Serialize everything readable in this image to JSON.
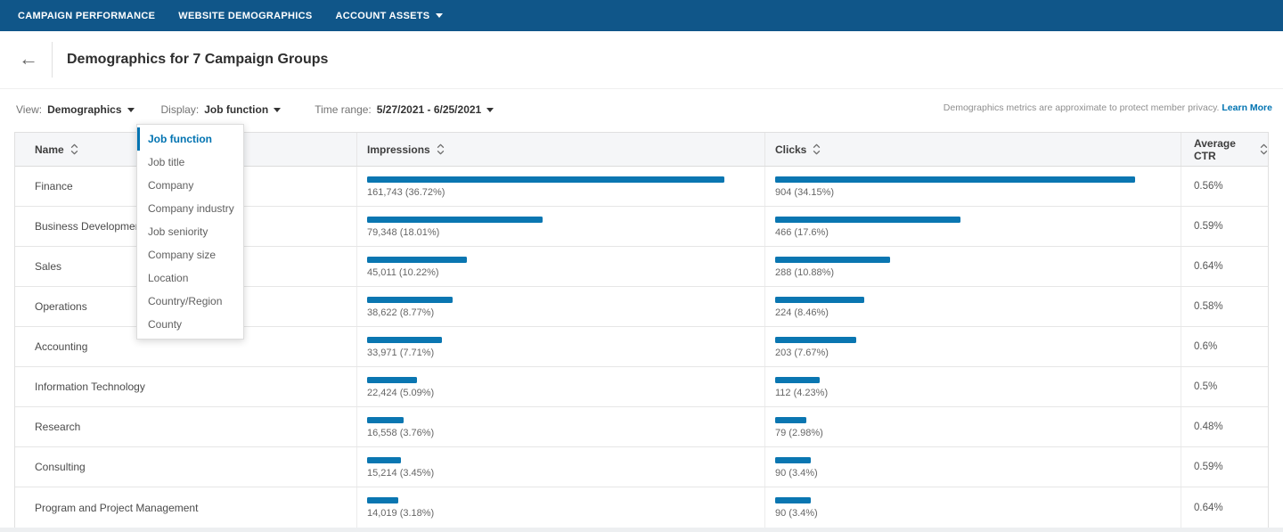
{
  "nav": {
    "items": [
      {
        "id": "campaign-performance",
        "label": "CAMPAIGN PERFORMANCE",
        "has_caret": false
      },
      {
        "id": "website-demographics",
        "label": "WEBSITE DEMOGRAPHICS",
        "has_caret": false
      },
      {
        "id": "account-assets",
        "label": "ACCOUNT ASSETS",
        "has_caret": true
      }
    ]
  },
  "header": {
    "title": "Demographics for 7 Campaign Groups"
  },
  "filters": {
    "view_label": "View:",
    "view_value": "Demographics",
    "display_label": "Display:",
    "display_value": "Job function",
    "time_range_label": "Time range:",
    "time_range_value": "5/27/2021 - 6/25/2021",
    "privacy_note": "Demographics metrics are approximate to protect member privacy.",
    "learn_more": "Learn More"
  },
  "display_dropdown": {
    "selected": "Job function",
    "items": [
      "Job function",
      "Job title",
      "Company",
      "Company industry",
      "Job seniority",
      "Company size",
      "Location",
      "Country/Region",
      "County"
    ]
  },
  "table": {
    "columns": [
      "Name",
      "Impressions",
      "Clicks",
      "Average CTR"
    ],
    "rows": [
      {
        "name": "Finance",
        "impressions_label": "161,743 (36.72%)",
        "impressions": 161743,
        "clicks_label": "904 (34.15%)",
        "clicks": 904,
        "avg_ctr": "0.56%"
      },
      {
        "name": "Business Development",
        "impressions_label": "79,348 (18.01%)",
        "impressions": 79348,
        "clicks_label": "466 (17.6%)",
        "clicks": 466,
        "avg_ctr": "0.59%"
      },
      {
        "name": "Sales",
        "impressions_label": "45,011 (10.22%)",
        "impressions": 45011,
        "clicks_label": "288 (10.88%)",
        "clicks": 288,
        "avg_ctr": "0.64%"
      },
      {
        "name": "Operations",
        "impressions_label": "38,622 (8.77%)",
        "impressions": 38622,
        "clicks_label": "224 (8.46%)",
        "clicks": 224,
        "avg_ctr": "0.58%"
      },
      {
        "name": "Accounting",
        "impressions_label": "33,971 (7.71%)",
        "impressions": 33971,
        "clicks_label": "203 (7.67%)",
        "clicks": 203,
        "avg_ctr": "0.6%"
      },
      {
        "name": "Information Technology",
        "impressions_label": "22,424 (5.09%)",
        "impressions": 22424,
        "clicks_label": "112 (4.23%)",
        "clicks": 112,
        "avg_ctr": "0.5%"
      },
      {
        "name": "Research",
        "impressions_label": "16,558 (3.76%)",
        "impressions": 16558,
        "clicks_label": "79 (2.98%)",
        "clicks": 79,
        "avg_ctr": "0.48%"
      },
      {
        "name": "Consulting",
        "impressions_label": "15,214 (3.45%)",
        "impressions": 15214,
        "clicks_label": "90 (3.4%)",
        "clicks": 90,
        "avg_ctr": "0.59%"
      },
      {
        "name": "Program and Project Management",
        "impressions_label": "14,019 (3.18%)",
        "impressions": 14019,
        "clicks_label": "90 (3.4%)",
        "clicks": 90,
        "avg_ctr": "0.64%"
      }
    ]
  },
  "colors": {
    "nav_bg": "#105689",
    "bar_blue": "#0a76b1",
    "link_blue": "#0073b1"
  }
}
